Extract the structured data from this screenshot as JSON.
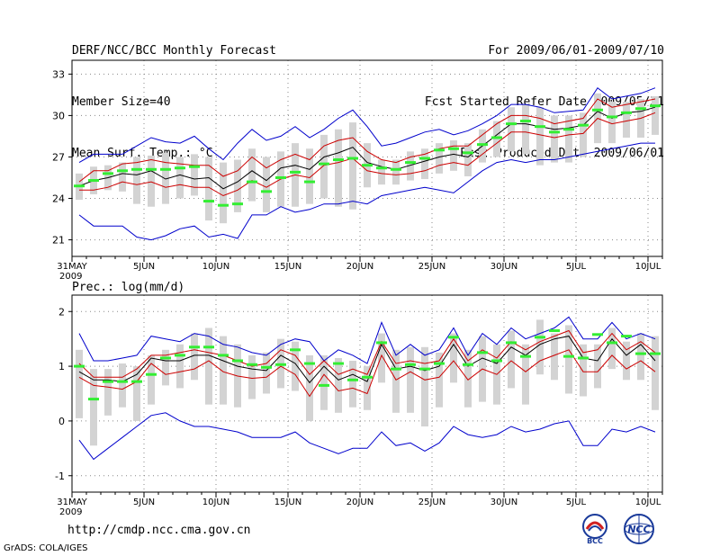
{
  "header": {
    "title": "DERF/NCC/BCC Monthly Forecast",
    "member_size": "Member Size=40",
    "variable": "Mean Surf. Temp.: °C",
    "period": "For 2009/06/01-2009/07/10",
    "started": "Fcst Started Refer Date 2009/05/31",
    "produced": "Fcst Produced Date 2009/06/01"
  },
  "footer": {
    "url": "http://cmdp.ncc.cma.gov.cn",
    "credit": "GrADS: COLA/IGES"
  },
  "logos": {
    "bcc": "BCC",
    "ncc": "NCC"
  },
  "colors": {
    "envelope": "#0000cc",
    "spread": "#cc0000",
    "mean": "#000000",
    "obs": "#33ee33",
    "box": "#d3d3d3"
  },
  "chart_data": [
    {
      "type": "line",
      "title": "Mean Surf. Temp.: °C",
      "ylim": [
        19.8,
        34.0
      ],
      "yticks": [
        21,
        24,
        27,
        30,
        33
      ],
      "xlim": [
        0,
        41
      ],
      "x_ticks": [
        {
          "day": 0,
          "label": "31MAY",
          "year": "2009"
        },
        {
          "day": 5,
          "label": "5JUN"
        },
        {
          "day": 10,
          "label": "10JUN"
        },
        {
          "day": 15,
          "label": "15JUN"
        },
        {
          "day": 20,
          "label": "20JUN"
        },
        {
          "day": 25,
          "label": "25JUN"
        },
        {
          "day": 30,
          "label": "30JUN"
        },
        {
          "day": 35,
          "label": "5JUL"
        },
        {
          "day": 40,
          "label": "10JUL"
        }
      ],
      "series": [
        {
          "name": "max",
          "values": [
            26.6,
            27.2,
            27.2,
            27.2,
            27.8,
            28.4,
            28.1,
            28.0,
            28.5,
            27.6,
            26.8,
            28.0,
            29.0,
            28.2,
            28.5,
            29.2,
            28.4,
            29.0,
            29.8,
            30.4,
            29.2,
            27.8,
            28.0,
            28.4,
            28.8,
            29.0,
            28.6,
            28.9,
            29.4,
            30.0,
            30.8,
            30.8,
            30.6,
            30.2,
            30.3,
            30.4,
            32.0,
            31.2,
            31.4,
            31.6,
            32.0
          ]
        },
        {
          "name": "upper",
          "values": [
            25.2,
            26.0,
            26.0,
            26.5,
            26.6,
            26.8,
            26.6,
            26.5,
            26.4,
            26.4,
            25.6,
            26.0,
            27.0,
            26.2,
            26.8,
            27.2,
            26.8,
            27.8,
            28.2,
            28.4,
            27.4,
            26.8,
            26.6,
            27.0,
            27.2,
            27.6,
            27.8,
            27.8,
            28.6,
            29.4,
            30.0,
            30.0,
            29.8,
            29.4,
            29.6,
            29.8,
            31.2,
            30.6,
            30.8,
            31.0,
            31.2
          ]
        },
        {
          "name": "mean",
          "values": [
            24.9,
            25.3,
            25.5,
            25.8,
            25.7,
            26.0,
            25.4,
            25.7,
            25.4,
            25.5,
            24.7,
            25.2,
            26.0,
            25.3,
            26.2,
            26.4,
            26.1,
            27.0,
            27.3,
            27.7,
            26.6,
            26.3,
            26.1,
            26.4,
            26.7,
            27.0,
            27.2,
            27.0,
            27.8,
            28.6,
            29.4,
            29.4,
            29.2,
            29.0,
            29.1,
            29.3,
            30.3,
            29.8,
            30.2,
            30.3,
            30.6
          ]
        },
        {
          "name": "lower",
          "values": [
            24.6,
            24.6,
            24.8,
            25.2,
            25.0,
            25.2,
            24.8,
            25.0,
            24.8,
            24.8,
            24.2,
            24.6,
            25.3,
            24.8,
            25.4,
            25.7,
            25.5,
            26.4,
            26.6,
            26.9,
            26.0,
            25.8,
            25.7,
            25.8,
            26.0,
            26.4,
            26.6,
            26.4,
            27.2,
            28.0,
            28.8,
            28.8,
            28.6,
            28.4,
            28.6,
            28.7,
            29.8,
            29.4,
            29.6,
            29.8,
            30.2
          ]
        },
        {
          "name": "min",
          "values": [
            22.8,
            22.0,
            22.0,
            22.0,
            21.2,
            21.0,
            21.3,
            21.8,
            22.0,
            21.2,
            21.4,
            21.1,
            22.8,
            22.8,
            23.4,
            23.0,
            23.2,
            23.6,
            23.6,
            23.8,
            23.6,
            24.2,
            24.4,
            24.6,
            24.8,
            24.6,
            24.4,
            25.2,
            26.0,
            26.6,
            26.8,
            26.6,
            26.8,
            26.8,
            27.0,
            27.2,
            27.4,
            27.6,
            27.8,
            28.0,
            28.0
          ]
        },
        {
          "name": "obs",
          "values": [
            24.9,
            25.3,
            25.8,
            26.0,
            26.1,
            26.1,
            26.1,
            26.2,
            26.3,
            23.8,
            23.5,
            23.6,
            25.2,
            24.5,
            25.5,
            25.9,
            25.2,
            26.5,
            26.8,
            26.9,
            26.4,
            26.2,
            26.1,
            26.6,
            26.9,
            27.5,
            27.6,
            27.3,
            27.9,
            28.4,
            29.4,
            29.6,
            29.2,
            28.8,
            29.0,
            29.3,
            30.4,
            29.9,
            30.2,
            30.5,
            30.7
          ]
        },
        {
          "name": "box_hi",
          "values": [
            25.8,
            26.3,
            26.4,
            26.6,
            27.0,
            27.1,
            27.3,
            27.0,
            27.2,
            27.0,
            26.6,
            26.8,
            27.6,
            27.0,
            27.4,
            28.0,
            27.6,
            28.6,
            29.0,
            29.5,
            28.0,
            26.8,
            26.8,
            27.4,
            27.6,
            28.0,
            28.2,
            28.0,
            29.0,
            29.6,
            30.6,
            30.8,
            30.6,
            30.0,
            30.0,
            30.2,
            31.6,
            31.0,
            31.0,
            31.2,
            31.4
          ]
        },
        {
          "name": "box_lo",
          "values": [
            23.9,
            24.3,
            24.6,
            24.5,
            23.6,
            23.4,
            23.6,
            24.0,
            24.2,
            22.4,
            22.2,
            23.0,
            23.8,
            23.0,
            23.4,
            23.4,
            23.6,
            24.0,
            23.4,
            23.2,
            24.8,
            25.0,
            25.0,
            25.3,
            25.4,
            25.8,
            26.0,
            25.6,
            26.6,
            27.0,
            27.4,
            27.2,
            26.4,
            26.6,
            26.6,
            27.0,
            28.0,
            28.0,
            28.4,
            28.4,
            28.6
          ]
        }
      ]
    },
    {
      "type": "line",
      "title": "Prec.: log(mm/d)",
      "ylim": [
        -1.3,
        2.3
      ],
      "yticks": [
        -1,
        0,
        1,
        2
      ],
      "xlim": [
        0,
        41
      ],
      "x_ticks": [
        {
          "day": 0,
          "label": "31MAY",
          "year": "2009"
        },
        {
          "day": 5,
          "label": "5JUN"
        },
        {
          "day": 10,
          "label": "10JUN"
        },
        {
          "day": 15,
          "label": "15JUN"
        },
        {
          "day": 20,
          "label": "20JUN"
        },
        {
          "day": 25,
          "label": "25JUN"
        },
        {
          "day": 30,
          "label": "30JUN"
        },
        {
          "day": 35,
          "label": "5JUL"
        },
        {
          "day": 40,
          "label": "10JUL"
        }
      ],
      "series": [
        {
          "name": "max",
          "values": [
            1.6,
            1.1,
            1.1,
            1.15,
            1.2,
            1.55,
            1.5,
            1.45,
            1.6,
            1.55,
            1.4,
            1.35,
            1.25,
            1.2,
            1.4,
            1.5,
            1.45,
            1.1,
            1.3,
            1.2,
            1.05,
            1.8,
            1.2,
            1.4,
            1.2,
            1.3,
            1.7,
            1.2,
            1.6,
            1.4,
            1.7,
            1.5,
            1.6,
            1.7,
            1.9,
            1.5,
            1.5,
            1.8,
            1.5,
            1.6,
            1.5
          ]
        },
        {
          "name": "upper",
          "values": [
            1.05,
            0.8,
            0.8,
            0.8,
            0.95,
            1.2,
            1.2,
            1.25,
            1.3,
            1.25,
            1.2,
            1.1,
            1.0,
            1.05,
            1.3,
            1.2,
            0.85,
            1.1,
            0.85,
            0.95,
            0.85,
            1.45,
            1.05,
            1.1,
            1.05,
            1.1,
            1.5,
            1.1,
            1.3,
            1.15,
            1.45,
            1.3,
            1.45,
            1.55,
            1.65,
            1.25,
            1.3,
            1.6,
            1.3,
            1.45,
            1.25
          ]
        },
        {
          "name": "mean",
          "values": [
            0.9,
            0.75,
            0.75,
            0.72,
            0.85,
            1.15,
            1.1,
            1.1,
            1.2,
            1.2,
            1.1,
            1.0,
            0.95,
            0.92,
            1.2,
            1.05,
            0.7,
            1.0,
            0.75,
            0.85,
            0.72,
            1.4,
            0.95,
            1.0,
            0.92,
            1.0,
            1.4,
            1.0,
            1.15,
            1.05,
            1.35,
            1.2,
            1.4,
            1.5,
            1.55,
            1.15,
            1.1,
            1.5,
            1.2,
            1.4,
            1.1
          ]
        },
        {
          "name": "lower",
          "values": [
            0.8,
            0.65,
            0.62,
            0.58,
            0.72,
            1.05,
            0.85,
            0.9,
            0.95,
            1.1,
            0.9,
            0.82,
            0.78,
            0.8,
            1.0,
            0.85,
            0.45,
            0.85,
            0.55,
            0.6,
            0.5,
            1.2,
            0.75,
            0.9,
            0.75,
            0.8,
            1.1,
            0.75,
            0.95,
            0.85,
            1.1,
            0.9,
            1.1,
            1.2,
            1.3,
            0.9,
            0.9,
            1.2,
            0.95,
            1.1,
            0.9
          ]
        },
        {
          "name": "min",
          "values": [
            -0.35,
            -0.7,
            -0.5,
            -0.3,
            -0.1,
            0.1,
            0.15,
            0.0,
            -0.1,
            -0.1,
            -0.15,
            -0.2,
            -0.3,
            -0.3,
            -0.3,
            -0.2,
            -0.4,
            -0.5,
            -0.6,
            -0.5,
            -0.5,
            -0.2,
            -0.45,
            -0.4,
            -0.55,
            -0.4,
            -0.1,
            -0.25,
            -0.3,
            -0.25,
            -0.1,
            -0.2,
            -0.15,
            -0.05,
            0.0,
            -0.45,
            -0.45,
            -0.15,
            -0.2,
            -0.1,
            -0.2
          ]
        },
        {
          "name": "obs",
          "values": [
            1.0,
            0.4,
            0.72,
            0.72,
            0.72,
            0.85,
            1.15,
            1.2,
            1.35,
            1.35,
            1.2,
            1.1,
            1.03,
            0.98,
            1.03,
            1.3,
            1.05,
            0.65,
            1.05,
            0.75,
            0.8,
            1.43,
            0.95,
            1.03,
            0.95,
            1.05,
            1.53,
            1.03,
            1.25,
            1.1,
            1.43,
            1.18,
            1.53,
            1.65,
            1.18,
            1.15,
            1.58,
            1.43,
            1.55,
            1.23,
            1.23
          ]
        },
        {
          "name": "box_hi",
          "values": [
            1.3,
            0.95,
            0.95,
            1.05,
            1.0,
            1.2,
            1.3,
            1.4,
            1.6,
            1.7,
            1.55,
            1.4,
            1.2,
            1.25,
            1.5,
            1.45,
            1.2,
            1.2,
            1.15,
            1.1,
            1.0,
            1.6,
            1.3,
            1.35,
            1.35,
            1.25,
            1.6,
            1.3,
            1.55,
            1.4,
            1.65,
            1.4,
            1.85,
            1.6,
            1.75,
            1.4,
            1.4,
            1.7,
            1.45,
            1.6,
            1.55
          ]
        },
        {
          "name": "box_lo",
          "values": [
            0.05,
            -0.45,
            0.1,
            0.25,
            0.0,
            0.3,
            0.65,
            0.6,
            0.75,
            0.3,
            0.3,
            0.25,
            0.4,
            0.5,
            0.6,
            0.55,
            0.0,
            0.2,
            0.15,
            0.25,
            0.2,
            0.7,
            0.15,
            0.15,
            -0.1,
            0.25,
            0.7,
            0.25,
            0.35,
            0.3,
            0.6,
            0.3,
            0.85,
            0.75,
            0.5,
            0.45,
            0.6,
            0.95,
            0.75,
            0.75,
            0.2
          ]
        }
      ]
    }
  ]
}
